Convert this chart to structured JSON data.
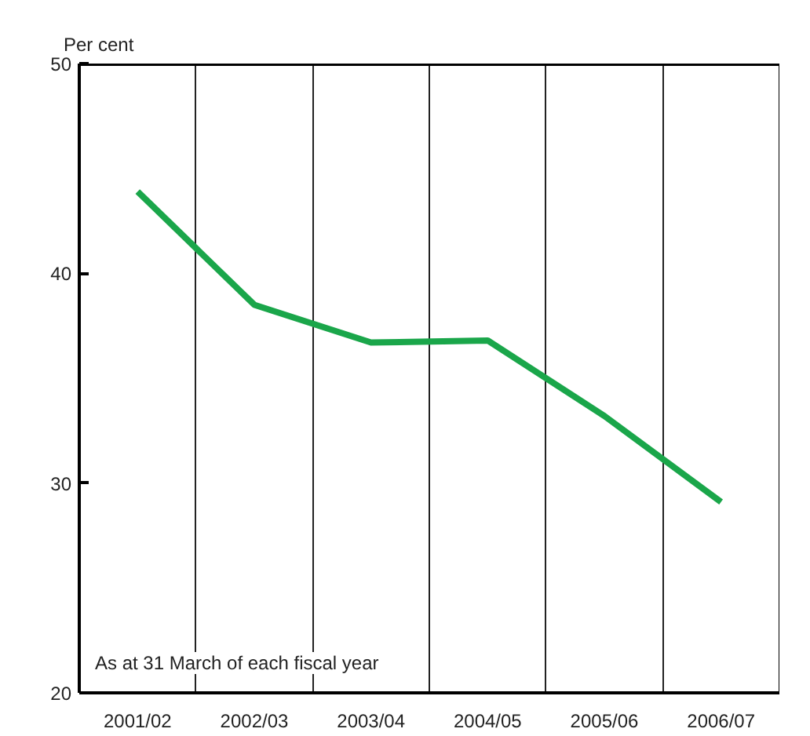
{
  "chart_data": {
    "type": "line",
    "ylabel": "Per cent",
    "categories": [
      "2001/02",
      "2002/03",
      "2003/04",
      "2004/05",
      "2005/06",
      "2006/07"
    ],
    "series": [
      {
        "color": "#1aa64a",
        "values": [
          43.9,
          38.5,
          36.7,
          36.8,
          33.2,
          29.1
        ]
      }
    ],
    "ylim": [
      20,
      50
    ],
    "yticks": [
      20,
      30,
      40,
      50
    ],
    "grid": "x",
    "marker": "none",
    "line_style": "solid",
    "annotations": [
      "As at 31 March of each fiscal year"
    ]
  }
}
